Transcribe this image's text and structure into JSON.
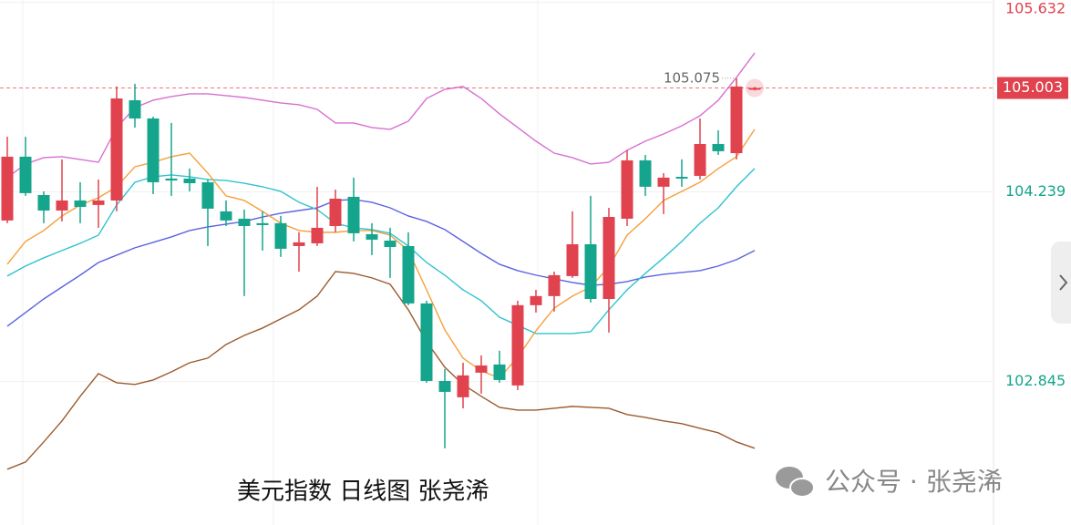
{
  "chart_data": {
    "type": "candlestick",
    "title": "美元指数 日线图  张尧浠",
    "up_color": "#e0424e",
    "down_color": "#14a58c",
    "open": [
      104.029,
      104.498,
      104.216,
      104.102,
      104.176,
      104.143,
      104.176,
      104.913,
      104.779,
      104.337,
      104.337,
      104.31,
      104.096,
      104.042,
      104.009,
      104.009,
      103.841,
      103.861,
      103.988,
      104.203,
      103.928,
      103.881,
      103.841,
      103.419,
      102.849,
      102.729,
      102.91,
      102.97,
      102.816,
      103.406,
      103.473,
      103.62,
      103.854,
      103.452,
      104.042,
      104.471,
      104.277,
      104.35,
      104.357,
      104.591,
      104.524,
      104.99
    ],
    "high": [
      104.645,
      104.645,
      104.243,
      104.478,
      104.31,
      104.33,
      105.014,
      105.034,
      104.792,
      104.746,
      104.411,
      104.33,
      104.176,
      104.109,
      104.096,
      104.062,
      103.942,
      104.277,
      104.256,
      104.344,
      104.009,
      103.975,
      103.942,
      103.439,
      102.937,
      102.983,
      103.037,
      103.071,
      103.439,
      103.519,
      103.653,
      104.096,
      104.21,
      104.122,
      104.545,
      104.511,
      104.377,
      104.478,
      104.779,
      104.692,
      105.075,
      105.01
    ],
    "low": [
      104.009,
      104.21,
      104.009,
      104.022,
      104.009,
      103.975,
      104.096,
      104.712,
      104.223,
      104.21,
      104.243,
      103.841,
      103.988,
      103.473,
      103.808,
      103.761,
      103.653,
      103.841,
      103.942,
      103.875,
      103.774,
      103.607,
      103.406,
      102.836,
      102.354,
      102.648,
      102.756,
      102.836,
      102.782,
      103.352,
      103.359,
      103.607,
      103.426,
      103.205,
      103.988,
      104.21,
      104.076,
      104.277,
      104.33,
      104.511,
      104.478,
      104.985
    ],
    "close": [
      104.498,
      104.23,
      104.102,
      104.176,
      104.129,
      104.176,
      104.926,
      104.779,
      104.31,
      104.323,
      104.303,
      104.116,
      104.029,
      103.988,
      103.995,
      103.821,
      103.868,
      103.975,
      104.189,
      103.935,
      103.888,
      103.834,
      103.419,
      102.849,
      102.769,
      102.89,
      102.963,
      102.856,
      103.406,
      103.473,
      103.627,
      103.854,
      103.452,
      104.055,
      104.471,
      104.277,
      104.344,
      104.337,
      104.591,
      104.538,
      105.014,
      105.003
    ],
    "series": [
      {
        "color": "#d86fd0",
        "values": [
          104.344,
          104.444,
          104.491,
          104.498,
          104.478,
          104.457,
          104.712,
          104.859,
          104.913,
          104.94,
          104.96,
          104.96,
          104.947,
          104.933,
          104.913,
          104.893,
          104.88,
          104.846,
          104.746,
          104.746,
          104.712,
          104.699,
          104.759,
          104.926,
          104.993,
          105.014,
          104.926,
          104.813,
          104.712,
          104.612,
          104.524,
          104.491,
          104.444,
          104.457,
          104.545,
          104.612,
          104.665,
          104.725,
          104.799,
          104.913,
          105.081,
          105.261
        ]
      },
      {
        "color": "#9c5a2e",
        "values": [
          102.2,
          102.253,
          102.401,
          102.555,
          102.736,
          102.903,
          102.836,
          102.823,
          102.856,
          102.916,
          102.983,
          103.017,
          103.117,
          103.184,
          103.238,
          103.305,
          103.372,
          103.473,
          103.653,
          103.64,
          103.607,
          103.56,
          103.372,
          103.138,
          102.95,
          102.823,
          102.736,
          102.655,
          102.635,
          102.635,
          102.648,
          102.662,
          102.655,
          102.648,
          102.602,
          102.581,
          102.555,
          102.535,
          102.501,
          102.468,
          102.401,
          102.354
        ]
      },
      {
        "color": "#5b63e0",
        "values": [
          103.251,
          103.352,
          103.452,
          103.54,
          103.627,
          103.72,
          103.774,
          103.828,
          103.868,
          103.908,
          103.955,
          103.982,
          104.002,
          104.022,
          104.055,
          104.082,
          104.102,
          104.122,
          104.176,
          104.183,
          104.163,
          104.122,
          104.062,
          104.022,
          103.962,
          103.875,
          103.787,
          103.707,
          103.66,
          103.627,
          103.6,
          103.573,
          103.553,
          103.56,
          103.58,
          103.613,
          103.633,
          103.647,
          103.66,
          103.694,
          103.741,
          103.808
        ]
      },
      {
        "color": "#2fc3d0",
        "values": [
          103.62,
          103.694,
          103.754,
          103.808,
          103.861,
          103.921,
          104.143,
          104.31,
          104.35,
          104.364,
          104.35,
          104.33,
          104.323,
          104.303,
          104.277,
          104.243,
          104.163,
          104.109,
          104.009,
          103.975,
          103.962,
          103.935,
          103.841,
          103.72,
          103.627,
          103.519,
          103.439,
          103.318,
          103.258,
          103.198,
          103.198,
          103.198,
          103.211,
          103.372,
          103.519,
          103.64,
          103.754,
          103.875,
          104.009,
          104.122,
          104.277,
          104.411
        ]
      },
      {
        "color": "#f5a03a",
        "values": [
          103.707,
          103.875,
          103.955,
          104.062,
          104.143,
          104.196,
          104.277,
          104.424,
          104.457,
          104.498,
          104.524,
          104.377,
          104.21,
          104.176,
          104.096,
          104.009,
          103.955,
          103.942,
          103.942,
          103.955,
          103.955,
          103.921,
          103.808,
          103.519,
          103.225,
          103.017,
          102.923,
          102.87,
          103.024,
          103.218,
          103.385,
          103.473,
          103.54,
          103.687,
          103.921,
          104.042,
          104.176,
          104.243,
          104.31,
          104.411,
          104.498,
          104.699
        ]
      }
    ],
    "high_annotation": 105.075,
    "last_price": 105.003,
    "ylim": [
      101.79,
      105.65
    ],
    "yticks": [
      105.632,
      104.239,
      102.845
    ],
    "grid": true
  },
  "watermark": "公众号 · 张尧浠"
}
